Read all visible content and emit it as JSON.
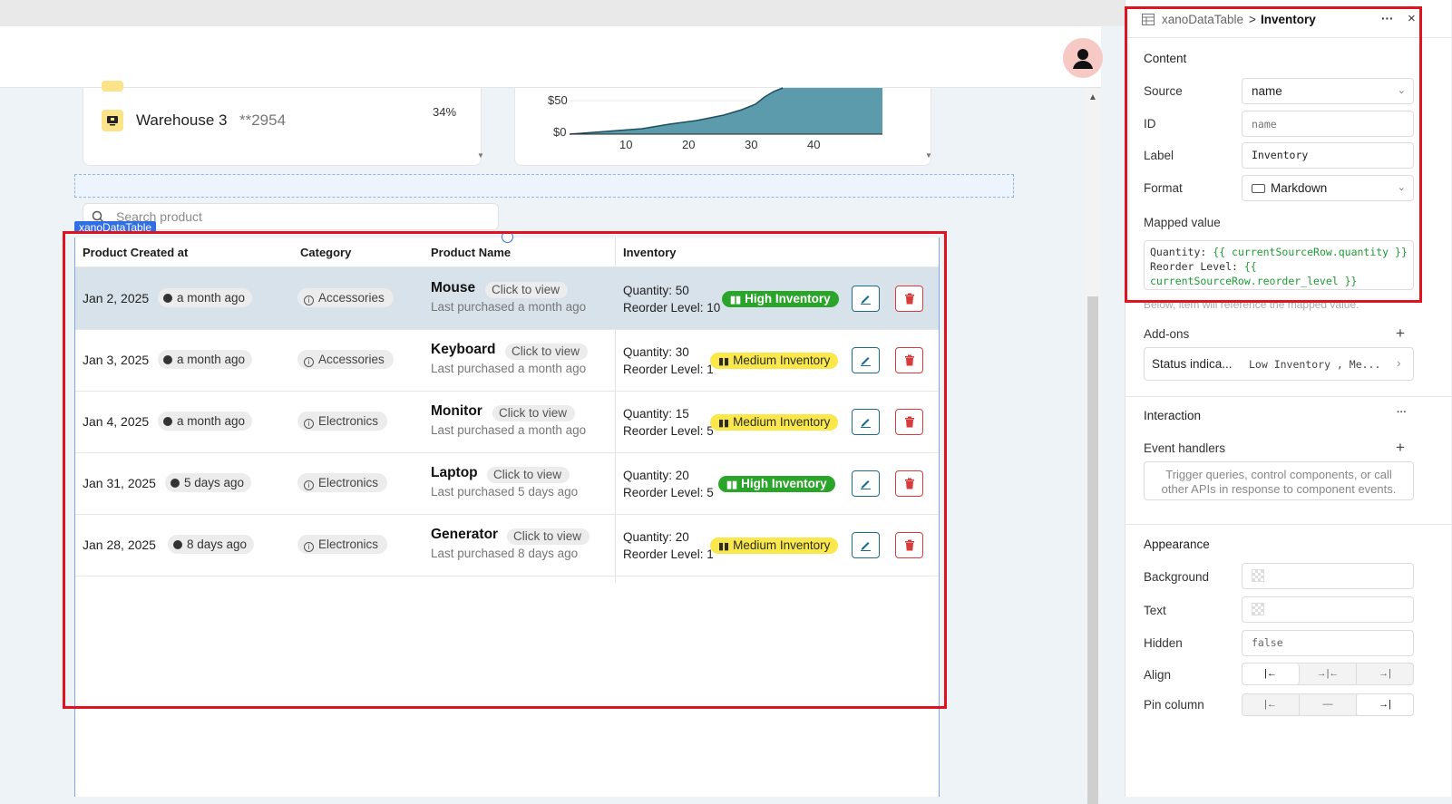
{
  "app": {
    "warehouse": {
      "name": "Warehouse 3",
      "code": "**2954",
      "percent": "34%"
    },
    "chart": {
      "ytick_50": "$50",
      "ytick_0": "$0",
      "xticks": [
        "10",
        "20",
        "30",
        "40"
      ]
    },
    "search_placeholder": "Search product",
    "component_label": "xanoDataTable",
    "columns": [
      "Product Created at",
      "Category",
      "Product Name",
      "Inventory"
    ],
    "rows": [
      {
        "date": "Jan 2, 2025",
        "ago": "a month ago",
        "category": "Accessories",
        "name": "Mouse",
        "view": "Click to view",
        "last": "Last purchased a month ago",
        "qty": "Quantity: 50",
        "reorder": "Reorder Level: 10",
        "status": "High Inventory"
      },
      {
        "date": "Jan 3, 2025",
        "ago": "a month ago",
        "category": "Accessories",
        "name": "Keyboard",
        "view": "Click to view",
        "last": "Last purchased a month ago",
        "qty": "Quantity: 30",
        "reorder": "Reorder Level: 1",
        "status": "Medium Inventory"
      },
      {
        "date": "Jan 4, 2025",
        "ago": "a month ago",
        "category": "Electronics",
        "name": "Monitor",
        "view": "Click to view",
        "last": "Last purchased a month ago",
        "qty": "Quantity: 15",
        "reorder": "Reorder Level: 5",
        "status": "Medium Inventory"
      },
      {
        "date": "Jan 31, 2025",
        "ago": "5 days ago",
        "category": "Electronics",
        "name": "Laptop",
        "view": "Click to view",
        "last": "Last purchased 5 days ago",
        "qty": "Quantity: 20",
        "reorder": "Reorder Level: 5",
        "status": "High Inventory"
      },
      {
        "date": "Jan 28, 2025",
        "ago": "8 days ago",
        "category": "Electronics",
        "name": "Generator",
        "view": "Click to view",
        "last": "Last purchased 8 days ago",
        "qty": "Quantity: 20",
        "reorder": "Reorder Level: 1",
        "status": "Medium Inventory"
      }
    ]
  },
  "panel": {
    "breadcrumb_parent": "xanoDataTable",
    "breadcrumb_sep": ">",
    "breadcrumb_current": "Inventory",
    "more": "···",
    "close": "×",
    "content_title": "Content",
    "source_label": "Source",
    "source_value": "name",
    "id_label": "ID",
    "id_placeholder": "name",
    "label_label": "Label",
    "label_value": "Inventory",
    "format_label": "Format",
    "format_value": "Markdown",
    "mapped_label": "Mapped value",
    "mapped_line1": "Quantity: ",
    "mapped_line1_expr": "{{ currentSourceRow.quantity }}",
    "mapped_line2": "Reorder Level: ",
    "mapped_line2_expr": "{{",
    "mapped_line3_expr": "currentSourceRow.reorder_level }}",
    "hint": "Below, item will reference the mapped value.",
    "addons_title": "Add-ons",
    "addon_name": "Status indica...",
    "addon_value": "Low Inventory , Me...",
    "interaction_title": "Interaction",
    "event_handlers": "Event handlers",
    "event_hint": "Trigger queries, control components, or call other APIs in response to component events.",
    "appearance_title": "Appearance",
    "background_label": "Background",
    "text_label": "Text",
    "hidden_label": "Hidden",
    "hidden_value": "false",
    "align_label": "Align",
    "pin_label": "Pin column"
  }
}
